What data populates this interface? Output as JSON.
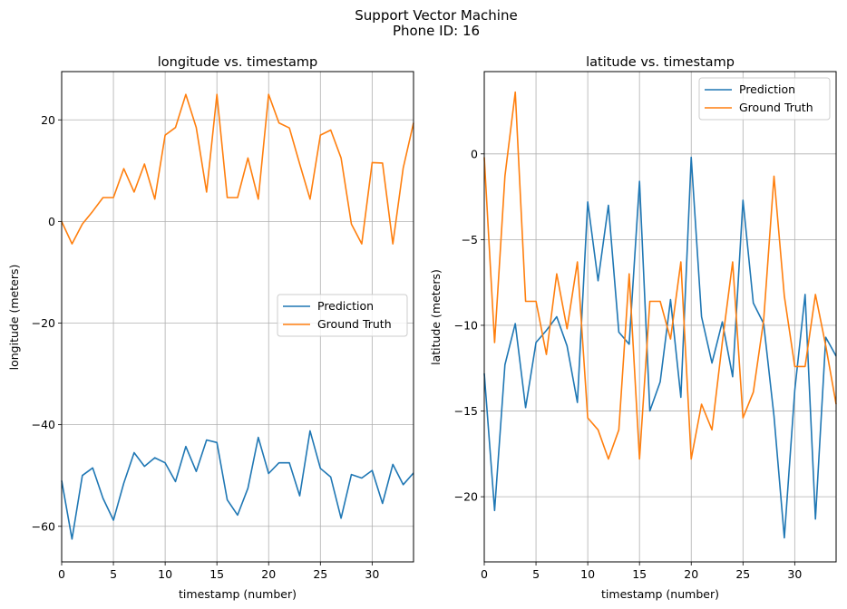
{
  "figure": {
    "title_line1": "Support Vector Machine",
    "title_line2": "Phone ID: 16"
  },
  "colors": {
    "prediction": "#1f77b4",
    "ground_truth": "#ff7f0e",
    "grid": "#b0b0b0"
  },
  "chart_data": [
    {
      "type": "line",
      "title": "longitude vs. timestamp",
      "xlabel": "timestamp (number)",
      "ylabel": "longitude (meters)",
      "xlim": [
        0,
        34
      ],
      "ylim": [
        -67,
        29.5
      ],
      "xticks": [
        0,
        5,
        10,
        15,
        20,
        25,
        30
      ],
      "yticks": [
        -60,
        -40,
        -20,
        0,
        20
      ],
      "grid": true,
      "legend_position": "center-right",
      "x": [
        0,
        1,
        2,
        3,
        4,
        5,
        6,
        7,
        8,
        9,
        10,
        11,
        12,
        13,
        14,
        15,
        16,
        17,
        18,
        19,
        20,
        21,
        22,
        23,
        24,
        25,
        26,
        27,
        28,
        29,
        30,
        31,
        32,
        33,
        34
      ],
      "series": [
        {
          "name": "Prediction",
          "values": [
            -51,
            -62.5,
            -50,
            -48.5,
            -54.5,
            -58.8,
            -51.5,
            -45.5,
            -48.2,
            -46.5,
            -47.5,
            -51.2,
            -44.3,
            -49.2,
            -43,
            -43.5,
            -54.8,
            -57.8,
            -52.5,
            -42.5,
            -49.6,
            -47.5,
            -47.5,
            -54,
            -41.2,
            -48.6,
            -50.3,
            -58.4,
            -49.8,
            -50.5,
            -49,
            -55.5,
            -47.8,
            -51.8,
            -49.5
          ]
        },
        {
          "name": "Ground Truth",
          "values": [
            0,
            -4.4,
            -0.5,
            2,
            4.7,
            4.7,
            10.4,
            5.8,
            11.3,
            4.4,
            17,
            18.5,
            25,
            18.5,
            5.8,
            25,
            4.7,
            4.7,
            12.5,
            4.4,
            25,
            19.4,
            18.4,
            11.3,
            4.4,
            17,
            18,
            12.5,
            -0.5,
            -4.4,
            11.6,
            11.5,
            -4.4,
            10.5,
            19.4
          ]
        }
      ]
    },
    {
      "type": "line",
      "title": "latitude vs. timestamp",
      "xlabel": "timestamp (number)",
      "ylabel": "latitude (meters)",
      "xlim": [
        0,
        34
      ],
      "ylim": [
        -23.8,
        4.8
      ],
      "xticks": [
        0,
        5,
        10,
        15,
        20,
        25,
        30
      ],
      "yticks": [
        -20,
        -15,
        -10,
        -5,
        0
      ],
      "grid": true,
      "legend_position": "top-right",
      "x": [
        0,
        1,
        2,
        3,
        4,
        5,
        6,
        7,
        8,
        9,
        10,
        11,
        12,
        13,
        14,
        15,
        16,
        17,
        18,
        19,
        20,
        21,
        22,
        23,
        24,
        25,
        26,
        27,
        28,
        29,
        30,
        31,
        32,
        33,
        34
      ],
      "series": [
        {
          "name": "Prediction",
          "values": [
            -12.8,
            -20.8,
            -12.3,
            -9.9,
            -14.8,
            -11,
            -10.3,
            -9.5,
            -11.2,
            -14.5,
            -2.8,
            -7.4,
            -3,
            -10.4,
            -11.1,
            -1.6,
            -15,
            -13.3,
            -8.5,
            -14.2,
            -0.2,
            -9.5,
            -12.2,
            -9.8,
            -13,
            -2.7,
            -8.7,
            -9.9,
            -15.3,
            -22.4,
            -13.8,
            -8.2,
            -21.3,
            -10.7,
            -11.8
          ]
        },
        {
          "name": "Ground Truth",
          "values": [
            -0.2,
            -11,
            -1.3,
            3.6,
            -8.6,
            -8.6,
            -11.7,
            -7,
            -10.2,
            -6.3,
            -15.4,
            -16.1,
            -17.8,
            -16.1,
            -7,
            -17.8,
            -8.6,
            -8.6,
            -10.8,
            -6.3,
            -17.8,
            -14.6,
            -16.1,
            -11,
            -6.3,
            -15.4,
            -13.9,
            -9.7,
            -1.3,
            -8.3,
            -12.4,
            -12.4,
            -8.2,
            -11.2,
            -14.6
          ]
        }
      ]
    }
  ]
}
